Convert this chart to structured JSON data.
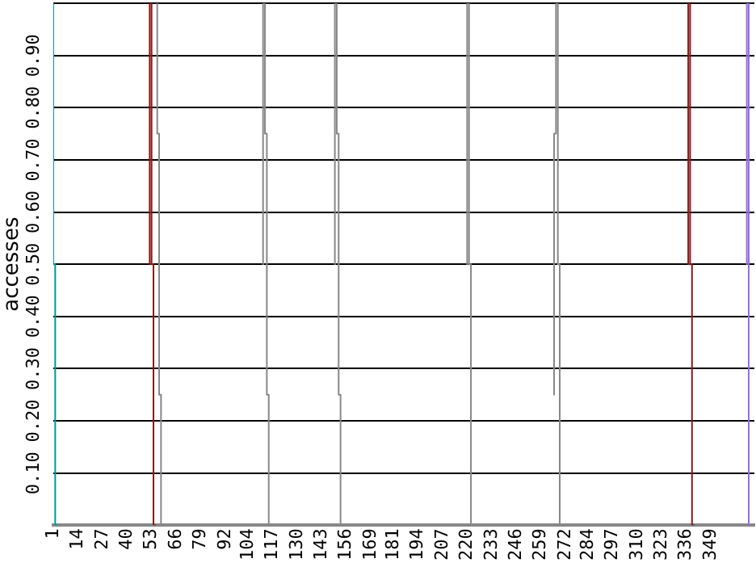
{
  "chart_data": {
    "type": "step",
    "ylabel": "accesses",
    "xlim": [
      1,
      372
    ],
    "ylim": [
      0,
      1
    ],
    "xticks": [
      1,
      14,
      27,
      40,
      53,
      66,
      79,
      92,
      104,
      117,
      130,
      143,
      156,
      169,
      181,
      194,
      207,
      220,
      233,
      246,
      259,
      272,
      284,
      297,
      310,
      323,
      336,
      349
    ],
    "yticks": [
      {
        "value": 0,
        "label": null
      },
      {
        "value": 0.1,
        "label": "0.10"
      },
      {
        "value": 0.2,
        "label": "0.20"
      },
      {
        "value": 0.3,
        "label": "0.30"
      },
      {
        "value": 0.4,
        "label": "0.40"
      },
      {
        "value": 0.5,
        "label": "0.50"
      },
      {
        "value": 0.6,
        "label": "0.60"
      },
      {
        "value": 0.7,
        "label": "0.70"
      },
      {
        "value": 0.8,
        "label": "0.80"
      },
      {
        "value": 0.9,
        "label": "0.90"
      },
      {
        "value": 1,
        "label": null
      }
    ],
    "grid": "y",
    "legend": false,
    "marker": "none",
    "series": [
      {
        "color": "#009999",
        "x": [
          1,
          2,
          3
        ],
        "values": [
          1,
          0.5,
          0
        ]
      },
      {
        "color": "#8b1a1a",
        "x": [
          52,
          53,
          54,
          55
        ],
        "values": [
          0.5,
          1,
          0.5,
          0
        ]
      },
      {
        "color": "#8b1a1a",
        "x": [
          337,
          338,
          339,
          340
        ],
        "values": [
          0.5,
          1,
          0.5,
          0
        ]
      },
      {
        "color": "#888888",
        "x": [
          56,
          57,
          58,
          59
        ],
        "values": [
          1,
          0.75,
          0.25,
          0
        ]
      },
      {
        "color": "#888888",
        "x": [
          112,
          113,
          114,
          115,
          116
        ],
        "values": [
          0.5,
          1,
          0.75,
          0.25,
          0
        ]
      },
      {
        "color": "#888888",
        "x": [
          150,
          151,
          152,
          153,
          154
        ],
        "values": [
          0.5,
          1,
          0.75,
          0.25,
          0
        ]
      },
      {
        "color": "#888888",
        "x": [
          220,
          221,
          222,
          223
        ],
        "values": [
          0.5,
          1,
          0.5,
          0
        ]
      },
      {
        "color": "#888888",
        "x": [
          266,
          267,
          268,
          269,
          270
        ],
        "values": [
          0.25,
          0.75,
          1,
          0.5,
          0
        ]
      },
      {
        "color": "#9370db",
        "x": [
          368,
          369,
          370
        ],
        "values": [
          0.5,
          1,
          0
        ]
      }
    ]
  }
}
